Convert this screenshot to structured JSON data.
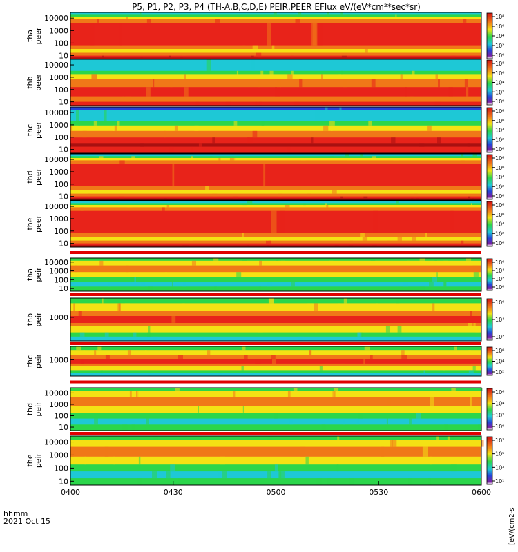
{
  "chart_data": {
    "type": "heatmap",
    "title": "P5, P1, P2, P3, P4 (TH-A,B,C,D,E) PEIR,PEER EFlux eV/(eV*cm²*sec*sr)",
    "x_ticks": [
      "0400",
      "0430",
      "0500",
      "0530",
      "0600"
    ],
    "x_range": [
      "0400",
      "0600"
    ],
    "x_corner_label": "hhmm",
    "date_label": "2021 Oct 15",
    "colorbar_unit_partial": "[eV/(cm2-s",
    "colors": {
      "red": "#e8231a",
      "orange": "#f07818",
      "yellow": "#f4e214",
      "green": "#2bd64b",
      "cyan": "#1ec8d6",
      "blue": "#2444d8",
      "darkred": "#a81010"
    },
    "panels": [
      {
        "probe": "tha",
        "species": "peer",
        "y_ticks": [
          "10000",
          "1000",
          "100",
          "10"
        ],
        "cbar_ticks": [
          "10⁸",
          "10⁶",
          "10⁴",
          "10²",
          "10⁰"
        ],
        "profile": "electron_full"
      },
      {
        "probe": "thb",
        "species": "peer",
        "y_ticks": [
          "10000",
          "1000",
          "100",
          "10"
        ],
        "cbar_ticks": [
          "10⁸",
          "10⁶",
          "10⁴",
          "10²",
          "10⁰"
        ],
        "profile": "electron_low"
      },
      {
        "probe": "thc",
        "species": "peer",
        "y_ticks": [
          "10000",
          "1000",
          "100",
          "10"
        ],
        "cbar_ticks": [
          "10⁸",
          "10⁶",
          "10⁴",
          "10²",
          "10⁰"
        ],
        "profile": "electron_cool"
      },
      {
        "probe": "thd",
        "species": "peer",
        "y_ticks": [
          "10000",
          "1000",
          "100",
          "10"
        ],
        "cbar_ticks": [
          "10⁸",
          "10⁶",
          "10⁴",
          "10²",
          "10⁰"
        ],
        "profile": "electron_full"
      },
      {
        "probe": "the",
        "species": "peer",
        "y_ticks": [
          "10000",
          "1000",
          "100",
          "10"
        ],
        "cbar_ticks": [
          "10⁸",
          "10⁶",
          "10⁴",
          "10²",
          "10⁰"
        ],
        "profile": "electron_full"
      },
      {
        "probe": "tha",
        "species": "peir",
        "y_ticks": [
          "10000",
          "1000",
          "100",
          "10"
        ],
        "cbar_ticks": [
          "10⁶",
          "10⁴",
          "10²",
          "10⁰"
        ],
        "profile": "ion"
      },
      {
        "probe": "thb",
        "species": "peir",
        "y_ticks": [
          "1000"
        ],
        "cbar_ticks": [
          "10⁶",
          "10⁴",
          "10²"
        ],
        "profile": "ion_band"
      },
      {
        "probe": "thc",
        "species": "peir",
        "y_ticks": [
          "1000"
        ],
        "cbar_ticks": [
          "10⁶",
          "10⁴",
          "10²"
        ],
        "profile": "ion_band"
      },
      {
        "probe": "thd",
        "species": "peir",
        "y_ticks": [
          "10000",
          "1000",
          "100",
          "10"
        ],
        "cbar_ticks": [
          "10⁶",
          "10⁴",
          "10²",
          "10⁰"
        ],
        "profile": "ion"
      },
      {
        "probe": "the",
        "species": "peir",
        "y_ticks": [
          "10000",
          "1000",
          "100",
          "10"
        ],
        "cbar_ticks": [
          "10⁷",
          "10⁵",
          "10³",
          "10¹"
        ],
        "profile": "ion"
      }
    ]
  }
}
